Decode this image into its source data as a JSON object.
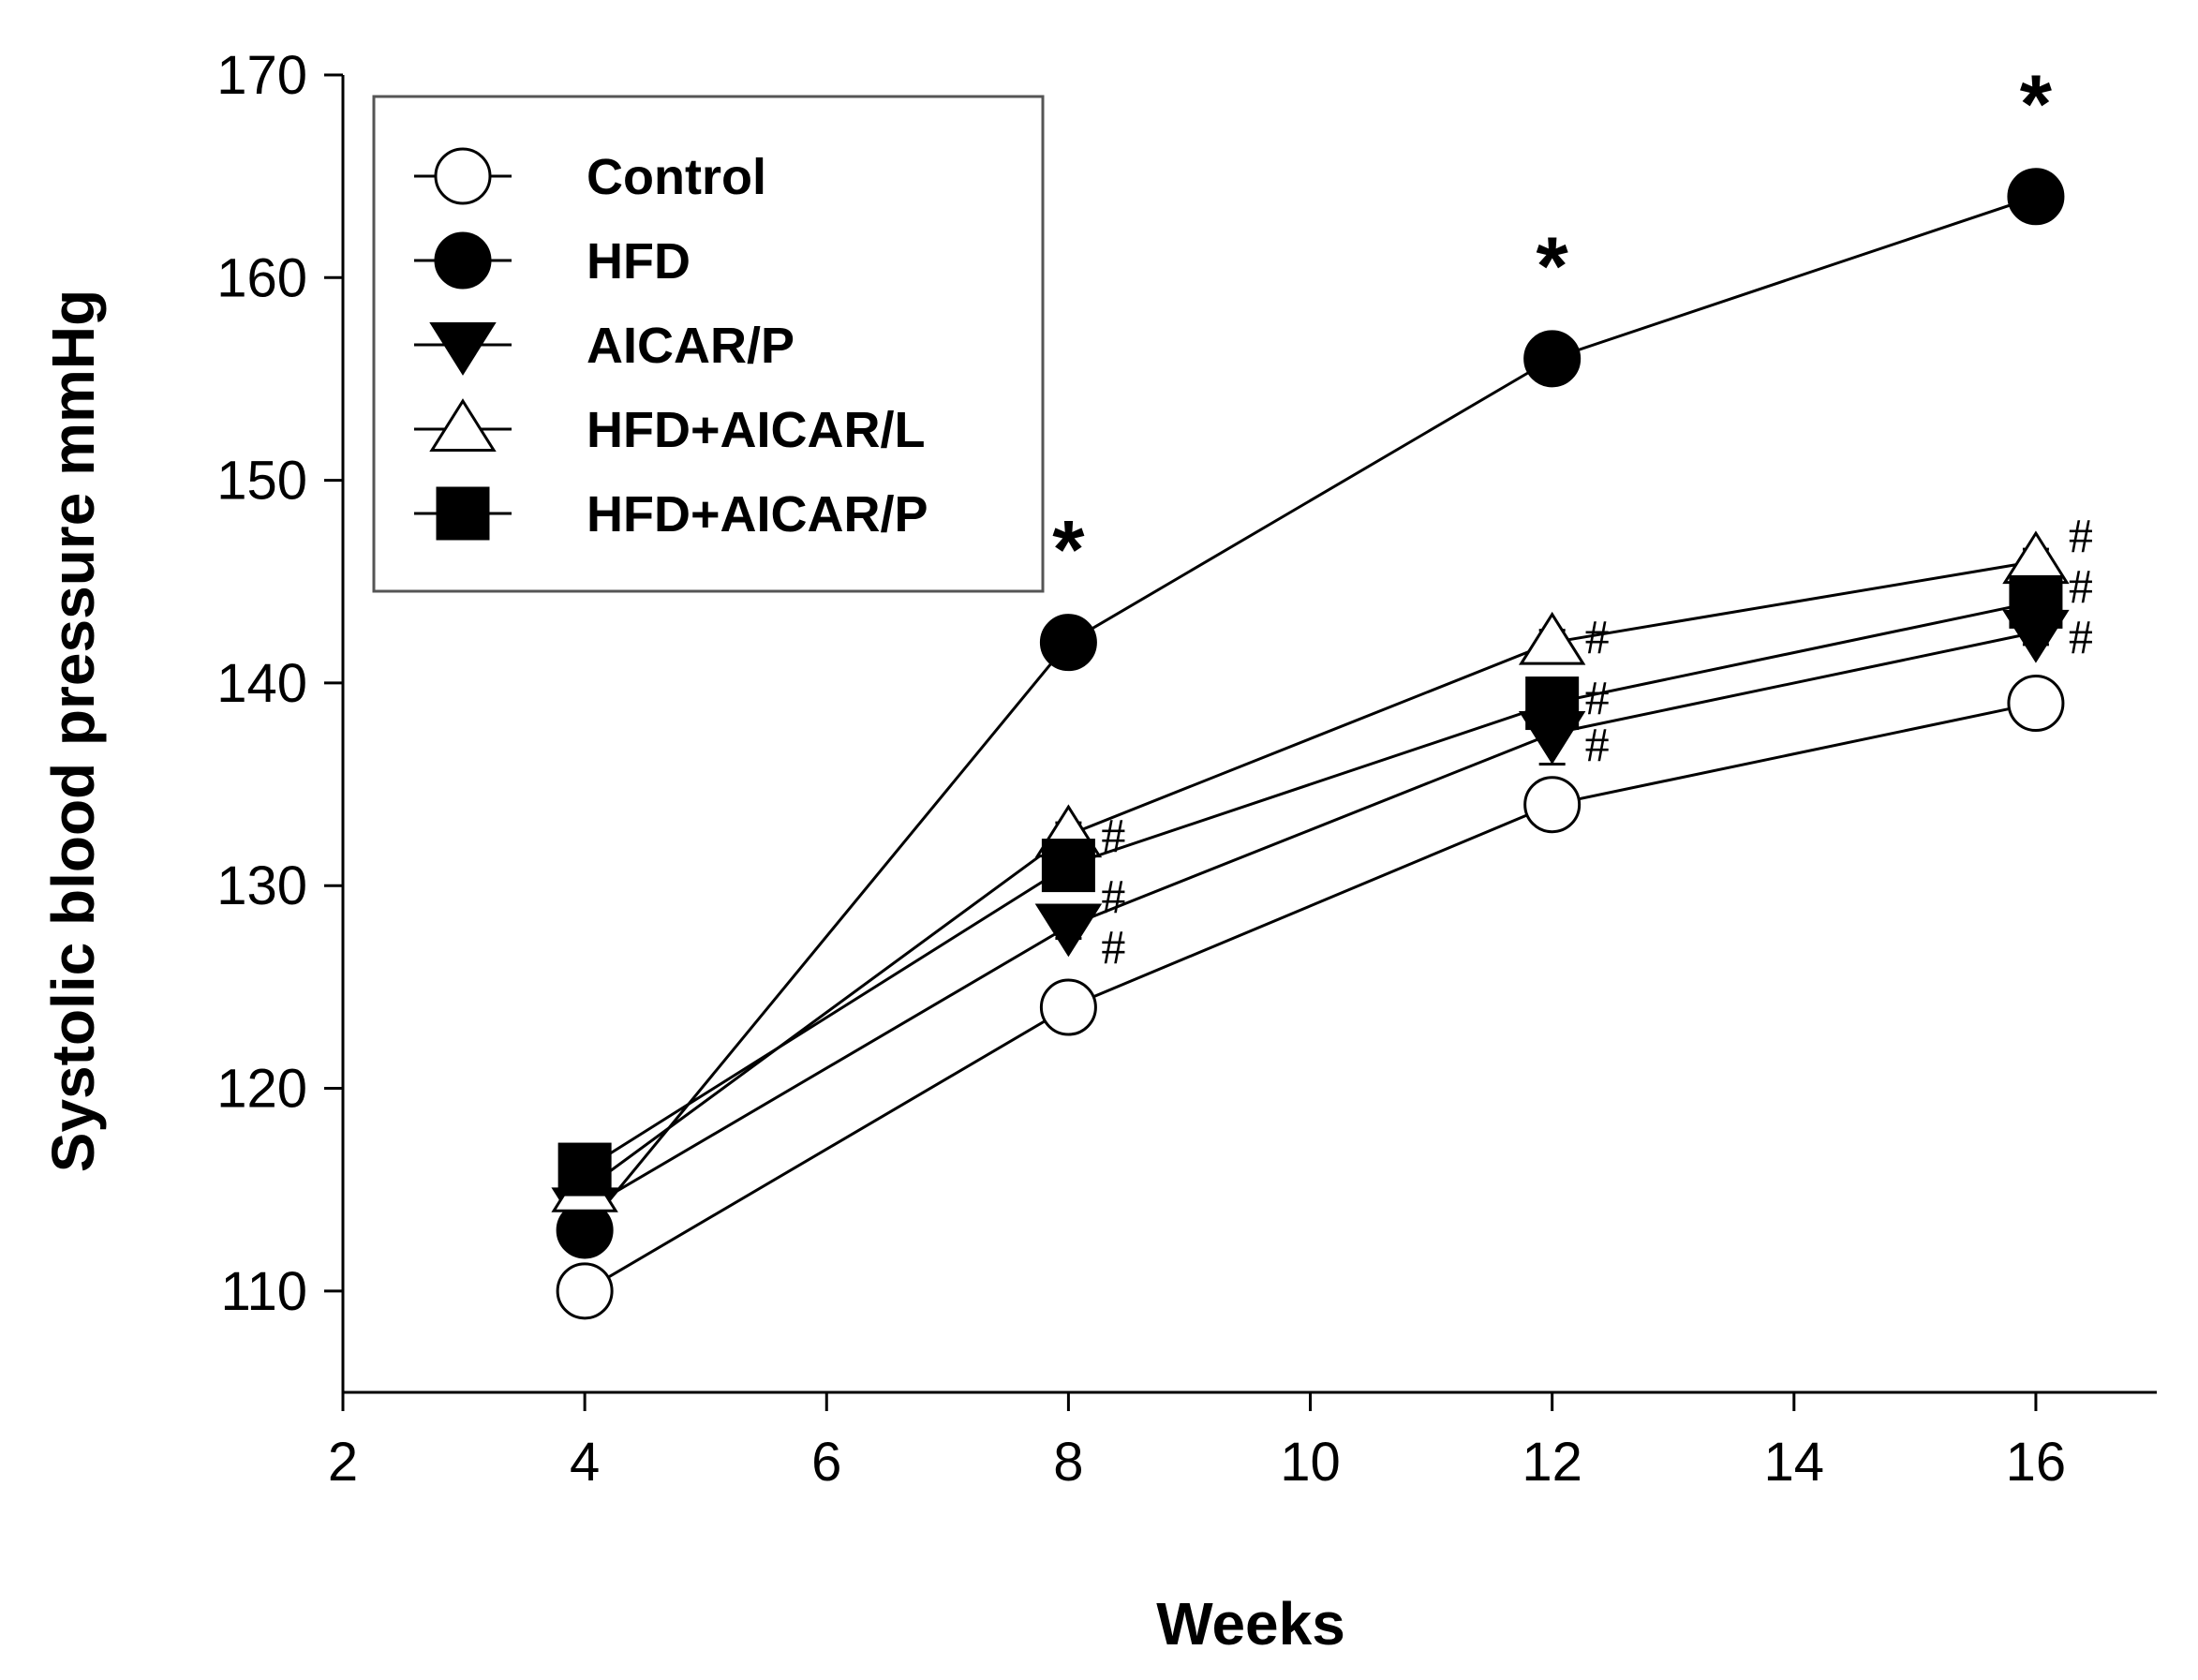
{
  "chart_data": {
    "type": "line",
    "title": "",
    "xlabel": "Weeks",
    "ylabel": "Systolic blood pressure mmHg",
    "xlim": [
      2,
      17
    ],
    "ylim": [
      105,
      170
    ],
    "xticks": [
      2,
      4,
      6,
      8,
      10,
      12,
      14,
      16
    ],
    "yticks": [
      110,
      120,
      130,
      140,
      150,
      160,
      170
    ],
    "grid": false,
    "legend_position": "top-left",
    "x": [
      4,
      8,
      12,
      16
    ],
    "series": [
      {
        "name": "Control",
        "marker": "circle-open",
        "values": [
          110,
          124,
          134,
          139
        ],
        "errors": [
          0.6,
          0.6,
          0.6,
          0.6
        ]
      },
      {
        "name": "HFD",
        "marker": "circle-filled",
        "values": [
          113,
          142,
          156,
          164
        ],
        "errors": [
          0.6,
          0.6,
          0.6,
          0.6
        ]
      },
      {
        "name": "AICAR/P",
        "marker": "triangle-down-filled",
        "values": [
          114,
          128,
          137.5,
          142.5
        ],
        "errors": [
          0.6,
          0.6,
          1.5,
          0.6
        ]
      },
      {
        "name": "HFD+AICAR/L",
        "marker": "triangle-up-open",
        "values": [
          115,
          132.5,
          142,
          146
        ],
        "errors": [
          0.6,
          0.6,
          0.6,
          0.6
        ]
      },
      {
        "name": "HFD+AICAR/P",
        "marker": "square-filled",
        "values": [
          116,
          131,
          139,
          144
        ],
        "errors": [
          0.6,
          0.6,
          0.6,
          0.6
        ]
      }
    ],
    "annotations": [
      {
        "text": "*",
        "x": 8,
        "y": 147.5,
        "kind": "star"
      },
      {
        "text": "*",
        "x": 12,
        "y": 161.5,
        "kind": "star"
      },
      {
        "text": "*",
        "x": 16,
        "y": 169.5,
        "kind": "star"
      },
      {
        "text": "#",
        "x": 8,
        "y": 132.5,
        "kind": "hash"
      },
      {
        "text": "#",
        "x": 8,
        "y": 129.5,
        "kind": "hash"
      },
      {
        "text": "#",
        "x": 8,
        "y": 127,
        "kind": "hash"
      },
      {
        "text": "#",
        "x": 12,
        "y": 142.3,
        "kind": "hash"
      },
      {
        "text": "#",
        "x": 12,
        "y": 139.3,
        "kind": "hash"
      },
      {
        "text": "#",
        "x": 12,
        "y": 137,
        "kind": "hash"
      },
      {
        "text": "#",
        "x": 16,
        "y": 147.3,
        "kind": "hash"
      },
      {
        "text": "#",
        "x": 16,
        "y": 144.8,
        "kind": "hash"
      },
      {
        "text": "#",
        "x": 16,
        "y": 142.3,
        "kind": "hash"
      }
    ]
  }
}
